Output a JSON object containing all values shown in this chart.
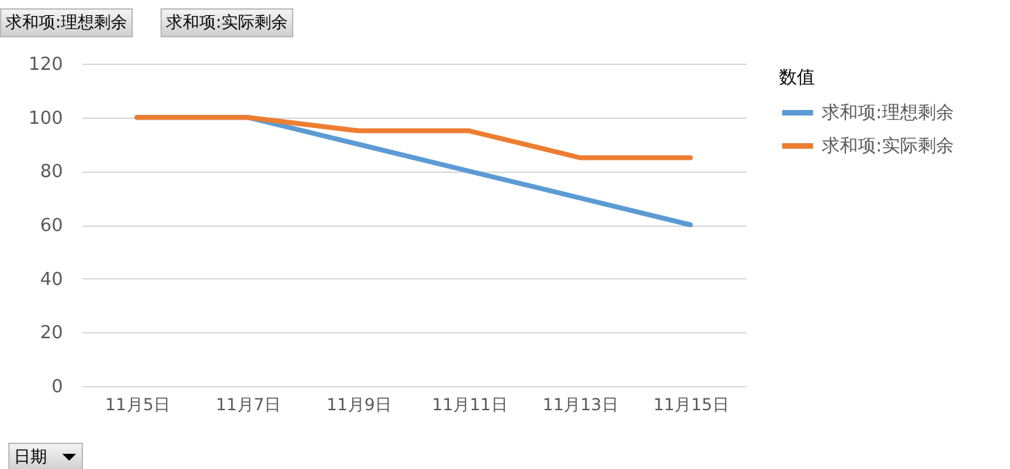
{
  "chart_data": {
    "type": "line",
    "categories": [
      "11月5日",
      "11月7日",
      "11月9日",
      "11月11日",
      "11月13日",
      "11月15日"
    ],
    "series": [
      {
        "name": "求和项:理想剩余",
        "color": "#5b9bd5",
        "values": [
          100,
          100,
          90,
          80,
          70,
          60
        ]
      },
      {
        "name": "求和项:实际剩余",
        "color": "#ed7d31",
        "values": [
          100,
          100,
          95,
          95,
          85,
          85
        ]
      }
    ],
    "ylim": [
      0,
      120
    ],
    "yticks": [
      0,
      20,
      40,
      60,
      80,
      100,
      120
    ],
    "grid": "y",
    "legend": "right",
    "legend_title": "数值",
    "marker": "none",
    "line_style": "solid",
    "annotations": [
      "求和项:理想剩余",
      "求和项:实际剩余",
      "日期"
    ]
  }
}
